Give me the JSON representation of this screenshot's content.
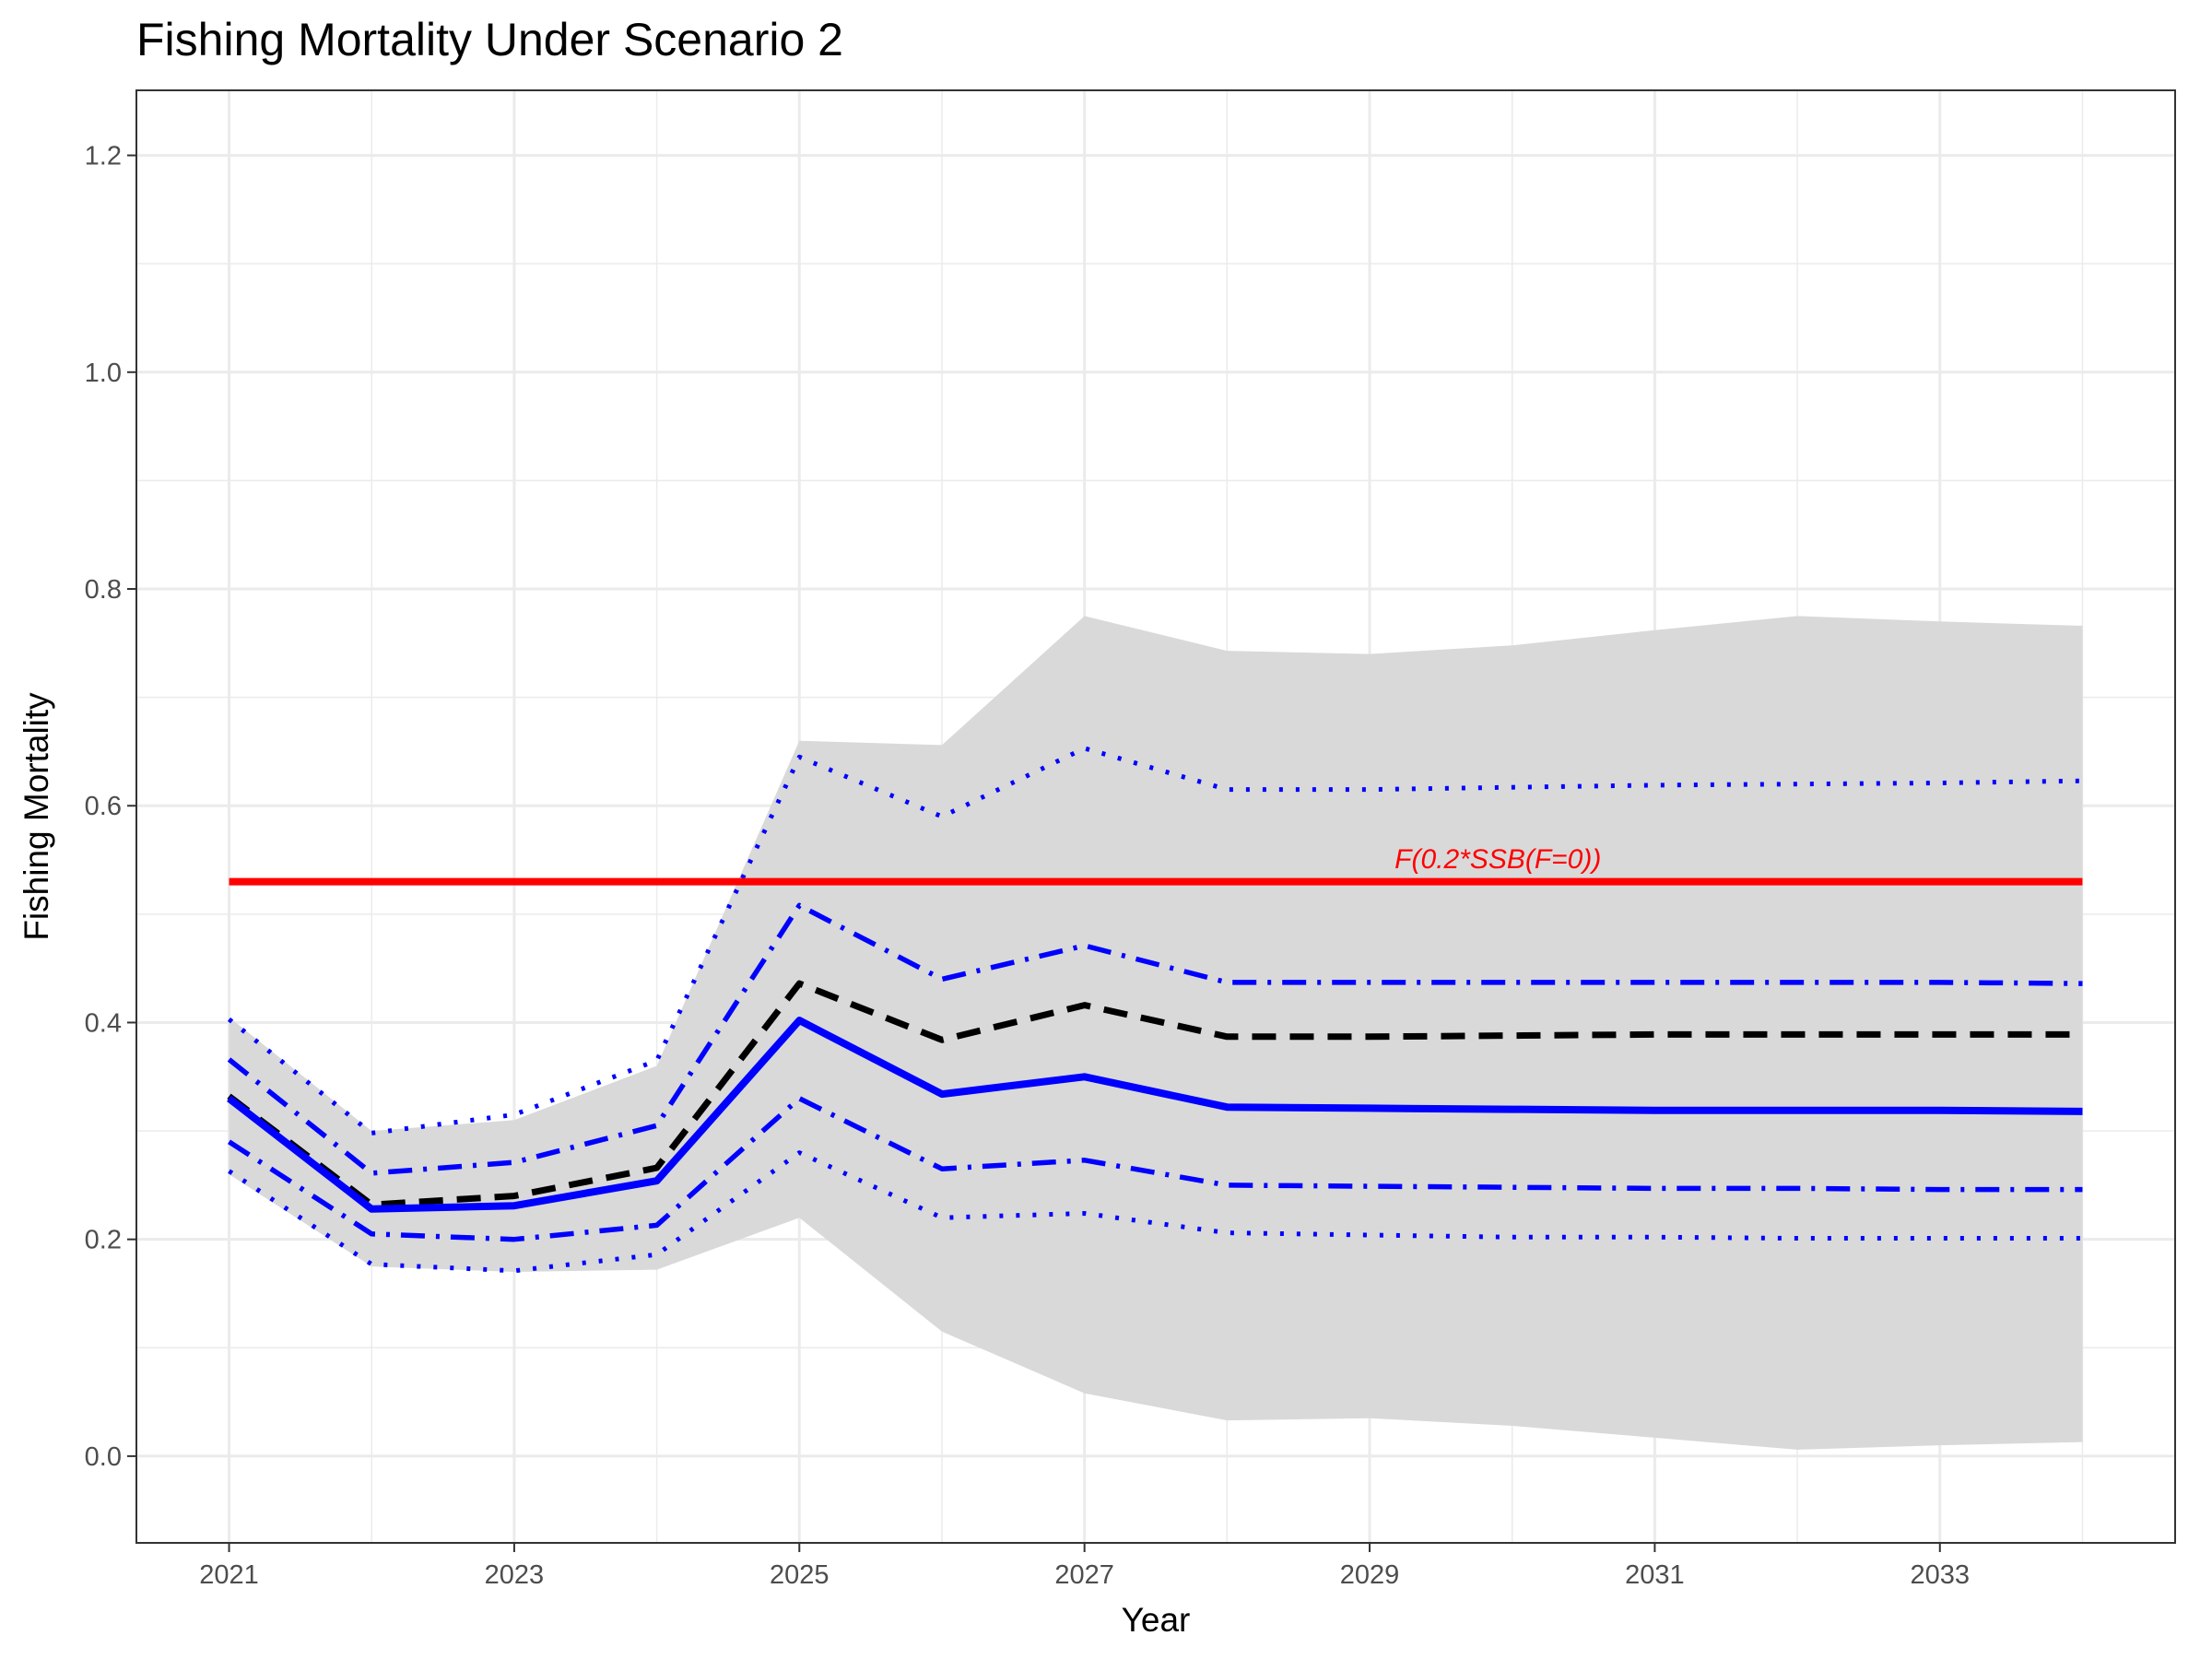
{
  "chart_data": {
    "type": "line",
    "title": "Fishing Mortality Under Scenario 2",
    "xlabel": "Year",
    "ylabel": "Fishing Mortality",
    "xlim": [
      2020.35,
      2034.65
    ],
    "ylim": [
      -0.08,
      1.26
    ],
    "x_ticks": [
      2021,
      2023,
      2025,
      2027,
      2029,
      2031,
      2033
    ],
    "y_ticks": [
      0.0,
      0.2,
      0.4,
      0.6,
      0.8,
      1.0,
      1.2
    ],
    "x_tick_labels": [
      "2021",
      "2023",
      "2025",
      "2027",
      "2029",
      "2031",
      "2033"
    ],
    "y_tick_labels": [
      "0.0",
      "0.2",
      "0.4",
      "0.6",
      "0.8",
      "1.0",
      "1.2"
    ],
    "grid": true,
    "x": [
      2021,
      2022,
      2023,
      2024,
      2025,
      2026,
      2027,
      2028,
      2029,
      2030,
      2031,
      2032,
      2033,
      2034
    ],
    "band": {
      "lower": [
        0.26,
        0.175,
        0.17,
        0.172,
        0.22,
        0.115,
        0.058,
        0.033,
        0.035,
        0.028,
        0.017,
        0.006,
        0.01,
        0.013
      ],
      "upper": [
        0.405,
        0.3,
        0.31,
        0.36,
        0.66,
        0.656,
        0.775,
        0.743,
        0.74,
        0.748,
        0.762,
        0.775,
        0.77,
        0.766
      ],
      "color": "#d9d9d9"
    },
    "series": [
      {
        "values": [
          0.33,
          0.228,
          0.231,
          0.254,
          0.402,
          0.334,
          0.35,
          0.322,
          0.321,
          0.32,
          0.319,
          0.319,
          0.319,
          0.318
        ],
        "color": "#0000ff",
        "style": "solid"
      },
      {
        "values": [
          0.332,
          0.232,
          0.24,
          0.266,
          0.436,
          0.384,
          0.416,
          0.387,
          0.387,
          0.388,
          0.389,
          0.389,
          0.389,
          0.389
        ],
        "color": "#000000",
        "style": "dashed"
      },
      {
        "values": [
          0.366,
          0.261,
          0.271,
          0.305,
          0.508,
          0.44,
          0.471,
          0.437,
          0.437,
          0.437,
          0.437,
          0.437,
          0.437,
          0.436
        ],
        "color": "#0000ff",
        "style": "dotdash"
      },
      {
        "values": [
          0.29,
          0.205,
          0.2,
          0.213,
          0.33,
          0.265,
          0.273,
          0.25,
          0.249,
          0.248,
          0.247,
          0.247,
          0.246,
          0.246
        ],
        "color": "#0000ff",
        "style": "dotdash"
      },
      {
        "values": [
          0.403,
          0.298,
          0.315,
          0.365,
          0.645,
          0.59,
          0.653,
          0.615,
          0.615,
          0.617,
          0.619,
          0.62,
          0.621,
          0.623
        ],
        "color": "#0000ff",
        "style": "dotted"
      },
      {
        "values": [
          0.263,
          0.177,
          0.171,
          0.186,
          0.28,
          0.22,
          0.224,
          0.206,
          0.204,
          0.202,
          0.202,
          0.201,
          0.201,
          0.201
        ],
        "color": "#0000ff",
        "style": "dotted"
      }
    ],
    "reference_line": {
      "y": 0.53,
      "x_start": 2021,
      "x_end": 2034,
      "color": "#ff0000",
      "label": "F(0.2*SSB(F=0))",
      "label_x": 2029.9,
      "label_y": 0.551
    }
  }
}
